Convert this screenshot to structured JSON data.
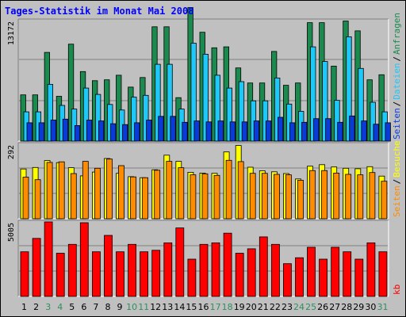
{
  "chart_data": [
    {
      "type": "bar",
      "title": "Tages-Statistik im Monat Mai 2008",
      "categories": [
        "1",
        "2",
        "3",
        "4",
        "5",
        "6",
        "7",
        "8",
        "9",
        "10",
        "11",
        "12",
        "13",
        "14",
        "15",
        "16",
        "17",
        "18",
        "19",
        "20",
        "21",
        "22",
        "23",
        "24",
        "25",
        "26",
        "27",
        "28",
        "29",
        "30",
        "31"
      ],
      "weekend_days": [
        "3",
        "4",
        "10",
        "11",
        "17",
        "18",
        "24",
        "25",
        "31"
      ],
      "ylabel_max": "13172",
      "ymax": 13172,
      "grid": true,
      "legend": "right",
      "series": [
        {
          "name": "Anfragen",
          "color": "#1a8a4e",
          "values": [
            5050,
            5050,
            9700,
            4900,
            10600,
            7600,
            6600,
            6700,
            7200,
            5900,
            6950,
            12500,
            12500,
            4750,
            14600,
            11900,
            10200,
            10300,
            8000,
            6350,
            6350,
            9800,
            6100,
            6350,
            12950,
            12950,
            8200,
            13130,
            12050,
            6700,
            7250
          ]
        },
        {
          "name": "Dateien",
          "color": "#1ec8f8",
          "values": [
            3200,
            3200,
            6200,
            3900,
            3500,
            5800,
            5100,
            4000,
            3400,
            4800,
            5000,
            8400,
            8400,
            3500,
            10700,
            9500,
            7200,
            5800,
            6500,
            4400,
            4400,
            6900,
            4050,
            3250,
            10300,
            8700,
            4450,
            11400,
            7950,
            4250,
            3200
          ]
        },
        {
          "name": "Seiten",
          "color": "#0a3ad8",
          "values": [
            2000,
            2000,
            2300,
            2400,
            1700,
            2300,
            2200,
            1900,
            1800,
            2000,
            2300,
            2700,
            2700,
            2050,
            2200,
            2100,
            2200,
            2100,
            2100,
            2200,
            2200,
            2600,
            2000,
            2050,
            2450,
            2450,
            2050,
            2750,
            2200,
            1850,
            2000
          ]
        }
      ]
    },
    {
      "type": "bar",
      "ylabel_max": "292",
      "ymax": 292,
      "grid": true,
      "legend": "right",
      "series": [
        {
          "name": "Besuche",
          "color": "#ffff00",
          "values": [
            195,
            201,
            228,
            220,
            200,
            168,
            183,
            236,
            178,
            165,
            161,
            192,
            249,
            225,
            182,
            179,
            178,
            262,
            287,
            202,
            188,
            184,
            177,
            156,
            206,
            212,
            203,
            198,
            196,
            204,
            167
          ]
        },
        {
          "name": "Seiten",
          "color": "#ff8c00",
          "values": [
            163,
            153,
            221,
            223,
            177,
            225,
            198,
            234,
            208,
            164,
            161,
            190,
            225,
            200,
            172,
            176,
            170,
            229,
            224,
            178,
            178,
            174,
            172,
            151,
            189,
            189,
            179,
            174,
            172,
            181,
            147
          ]
        }
      ]
    },
    {
      "type": "bar",
      "ylabel_max": "5005",
      "ymax": 5005,
      "grid": true,
      "legend": "right",
      "series": [
        {
          "name": "kb",
          "color": "#ff0000",
          "values": [
            3000,
            3900,
            5005,
            2900,
            3500,
            4950,
            3000,
            4100,
            3000,
            3500,
            3000,
            3100,
            3600,
            4600,
            2500,
            3500,
            3600,
            4250,
            2900,
            3200,
            4000,
            3500,
            2200,
            2600,
            3300,
            2500,
            3300,
            3000,
            2500,
            3600,
            3000
          ]
        }
      ]
    }
  ]
}
